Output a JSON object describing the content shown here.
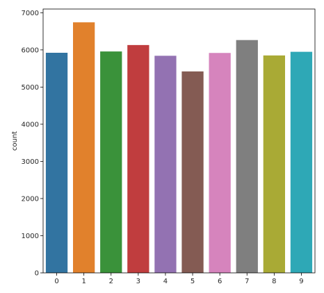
{
  "chart_data": {
    "type": "bar",
    "title": "",
    "xlabel": "",
    "ylabel": "count",
    "categories": [
      "0",
      "1",
      "2",
      "3",
      "4",
      "5",
      "6",
      "7",
      "8",
      "9"
    ],
    "values": [
      5923,
      6742,
      5958,
      6131,
      5842,
      5421,
      5918,
      6265,
      5851,
      5949
    ],
    "ylim": [
      0,
      7100
    ],
    "yticks": [
      0,
      1000,
      2000,
      3000,
      4000,
      5000,
      6000,
      7000
    ],
    "grid": false,
    "legend": "none",
    "colors": [
      "#3274a1",
      "#e1812c",
      "#3a923a",
      "#c03d3e",
      "#9372b2",
      "#845b53",
      "#d684bd",
      "#7f7f7f",
      "#a9aa35",
      "#2ea8b6"
    ]
  }
}
